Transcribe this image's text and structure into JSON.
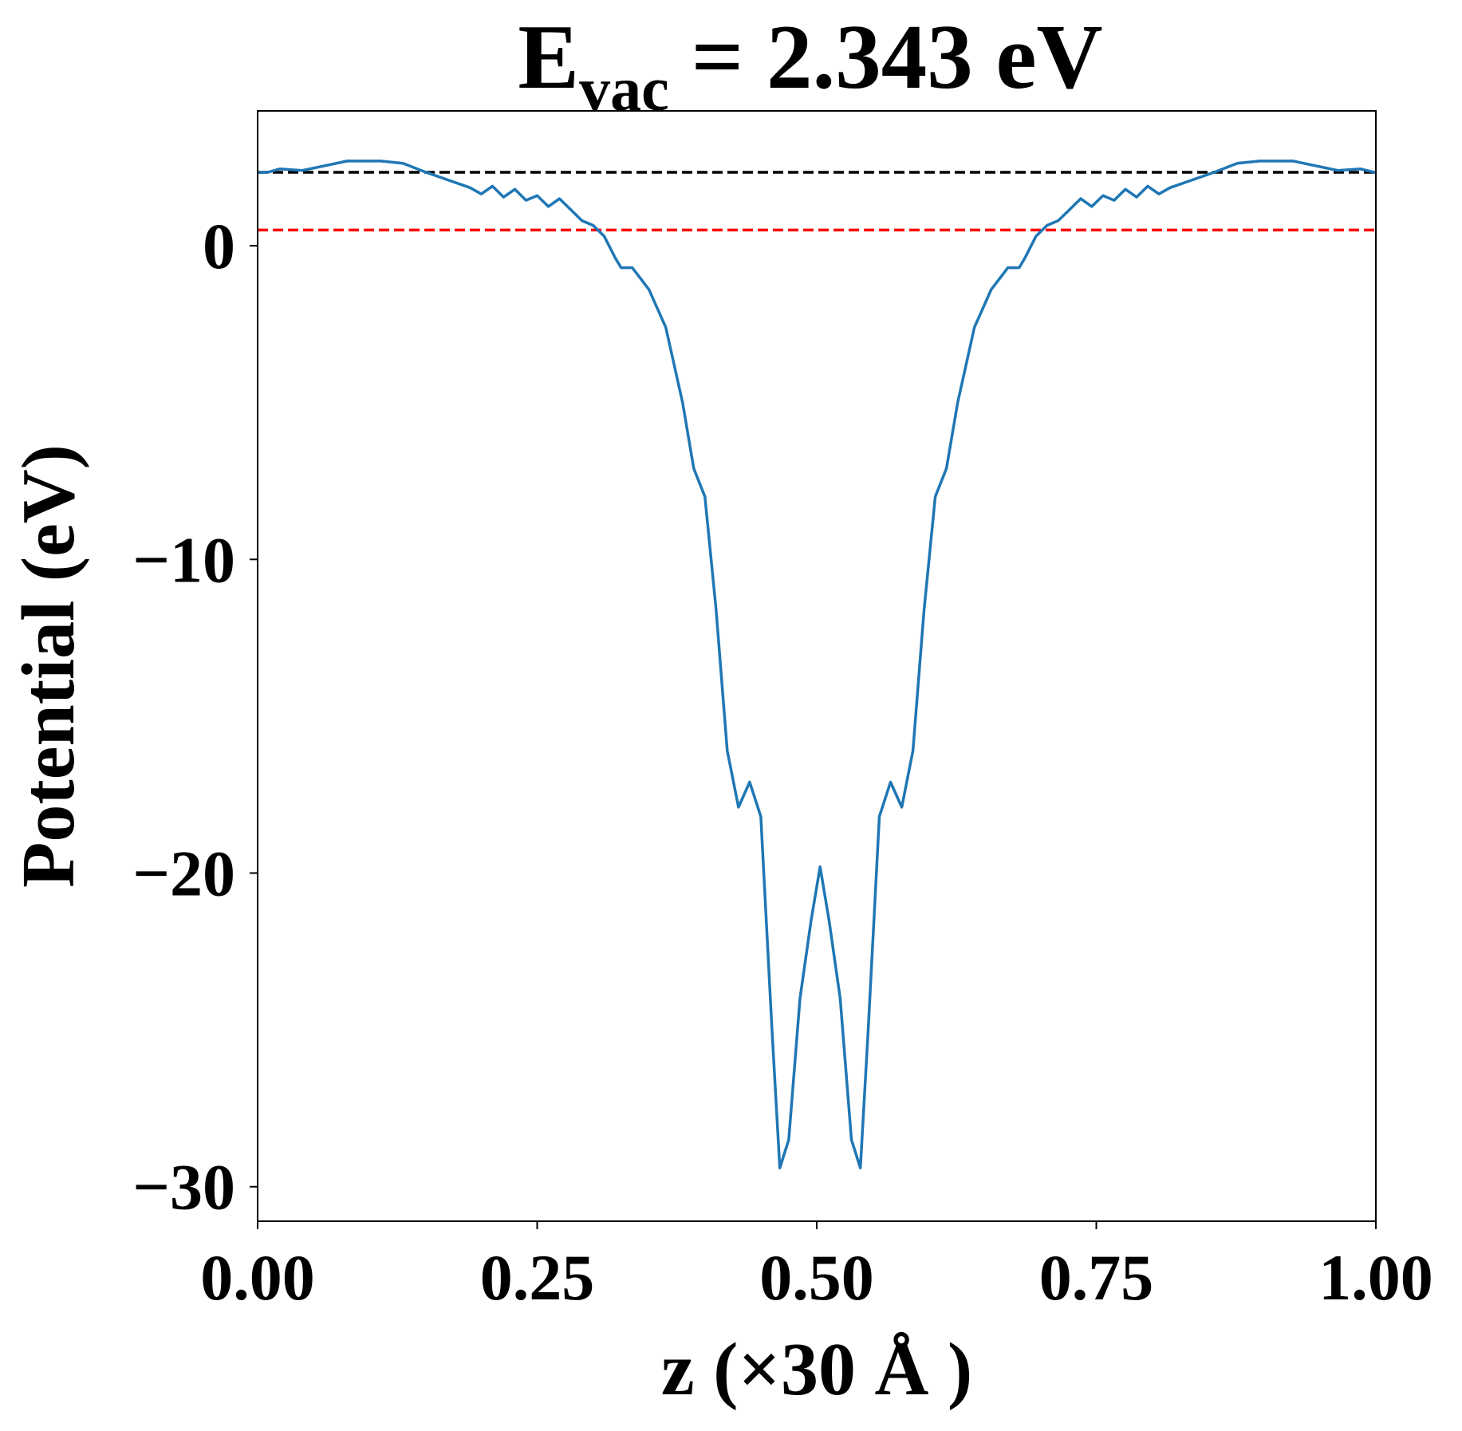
{
  "chart_data": {
    "type": "line",
    "title_main": "E",
    "title_sub": "vac",
    "title_rest": "= 2.343 eV",
    "xlabel": "z (×30 Å )",
    "ylabel": "Potential (eV)",
    "x": [
      0,
      0.01,
      0.02,
      0.04,
      0.06,
      0.08,
      0.11,
      0.13,
      0.15,
      0.17,
      0.19,
      0.2,
      0.21,
      0.22,
      0.23,
      0.24,
      0.25,
      0.26,
      0.27,
      0.28,
      0.29,
      0.3,
      0.31,
      0.32,
      0.325,
      0.335,
      0.35,
      0.365,
      0.38,
      0.39,
      0.4,
      0.41,
      0.42,
      0.43,
      0.44,
      0.45,
      0.46,
      0.467,
      0.475,
      0.485,
      0.495,
      0.503,
      0.511,
      0.521,
      0.531,
      0.539,
      0.546,
      0.556,
      0.566,
      0.576,
      0.586,
      0.596,
      0.606,
      0.616,
      0.626,
      0.641,
      0.656,
      0.671,
      0.681,
      0.686,
      0.696,
      0.706,
      0.716,
      0.726,
      0.736,
      0.746,
      0.756,
      0.766,
      0.776,
      0.786,
      0.796,
      0.806,
      0.816,
      0.836,
      0.856,
      0.876,
      0.896,
      0.926,
      0.946,
      0.966,
      0.986,
      1.0
    ],
    "series": [
      {
        "color": "#1f77b4",
        "values": [
          2.33,
          2.35,
          2.45,
          2.4,
          2.55,
          2.7,
          2.7,
          2.63,
          2.35,
          2.1,
          1.85,
          1.65,
          1.9,
          1.55,
          1.8,
          1.45,
          1.6,
          1.25,
          1.5,
          1.15,
          0.8,
          0.65,
          0.3,
          -0.4,
          -0.7,
          -0.7,
          -1.4,
          -2.6,
          -5,
          -7.1,
          -8,
          -11.6,
          -16.1,
          -17.9,
          -17.1,
          -18.2,
          -25,
          -29.4,
          -28.5,
          -24,
          -21.5,
          -19.8,
          -21.5,
          -24,
          -28.5,
          -29.4,
          -25,
          -18.2,
          -17.1,
          -17.9,
          -16.1,
          -11.6,
          -8,
          -7.1,
          -5,
          -2.6,
          -1.4,
          -0.7,
          -0.7,
          -0.4,
          0.3,
          0.65,
          0.8,
          1.15,
          1.5,
          1.25,
          1.6,
          1.45,
          1.8,
          1.55,
          1.9,
          1.65,
          1.85,
          2.1,
          2.35,
          2.63,
          2.7,
          2.7,
          2.55,
          2.4,
          2.45,
          2.33
        ]
      }
    ],
    "hlines": [
      {
        "value": 2.343,
        "color": "#000000"
      },
      {
        "value": 0.5,
        "color": "#ff0000"
      }
    ],
    "xlim": [
      0,
      1
    ],
    "ylim": [
      -31.1,
      4.3
    ],
    "xticks": [
      {
        "value": 0,
        "label": "0.00"
      },
      {
        "value": 0.25,
        "label": "0.25"
      },
      {
        "value": 0.5,
        "label": "0.50"
      },
      {
        "value": 0.75,
        "label": "0.75"
      },
      {
        "value": 1,
        "label": "1.00"
      }
    ],
    "yticks": [
      0,
      {
        "value": -10,
        "label": "−10"
      },
      {
        "value": -20,
        "label": "−20"
      },
      {
        "value": -30,
        "label": "−30"
      }
    ]
  }
}
